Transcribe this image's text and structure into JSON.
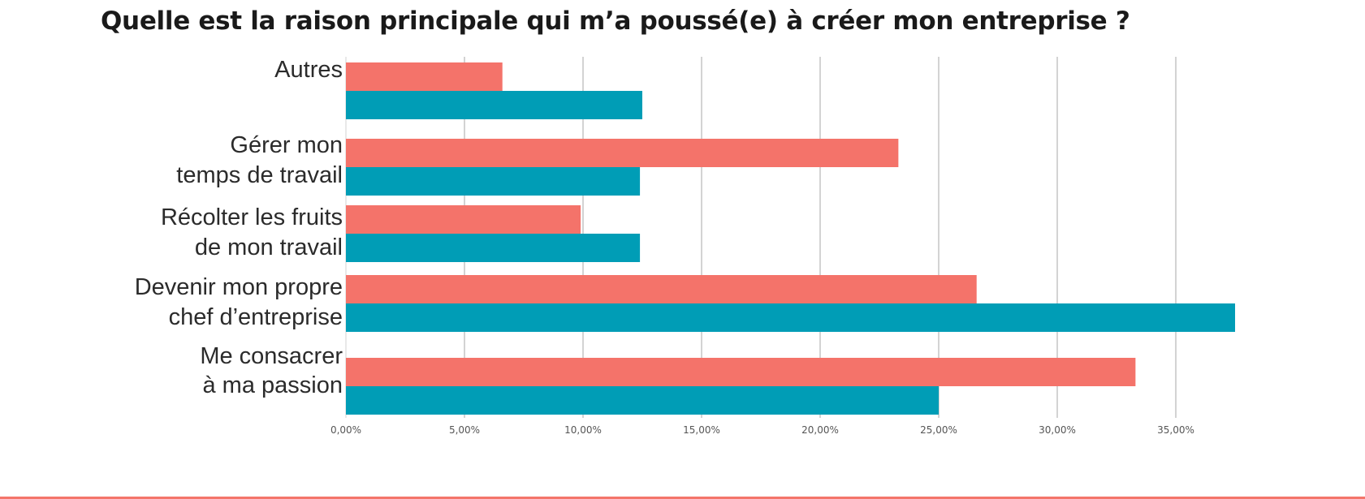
{
  "title": "Quelle est la raison principale qui m’a poussé(e) à créer mon entreprise ?",
  "colors": {
    "series_a": "#f4736a",
    "series_b": "#009db6",
    "grid": "#d3d3d3",
    "bottom_rule": "#f4756a"
  },
  "chart_data": {
    "type": "bar",
    "orientation": "horizontal",
    "title": "Quelle est la raison principale qui m’a poussé(e) à créer mon entreprise ?",
    "categories": [
      [
        "Autres"
      ],
      [
        "Gérer mon",
        "temps de travail"
      ],
      [
        "Récolter les fruits",
        "de mon travail"
      ],
      [
        "Devenir mon propre",
        "chef d’entreprise"
      ],
      [
        "Me consacrer",
        "à ma passion"
      ]
    ],
    "series": [
      {
        "values": [
          6.6,
          23.3,
          9.9,
          26.6,
          33.3
        ]
      },
      {
        "values": [
          12.5,
          12.4,
          12.4,
          37.5,
          25.0
        ]
      }
    ],
    "x_ticks": [
      "0,00%",
      "5,00%",
      "10,00%",
      "15,00%",
      "20,00%",
      "25,00%",
      "30,00%",
      "35,00%"
    ],
    "xlim": [
      0,
      37.5
    ],
    "grid": true,
    "legend": "none"
  }
}
